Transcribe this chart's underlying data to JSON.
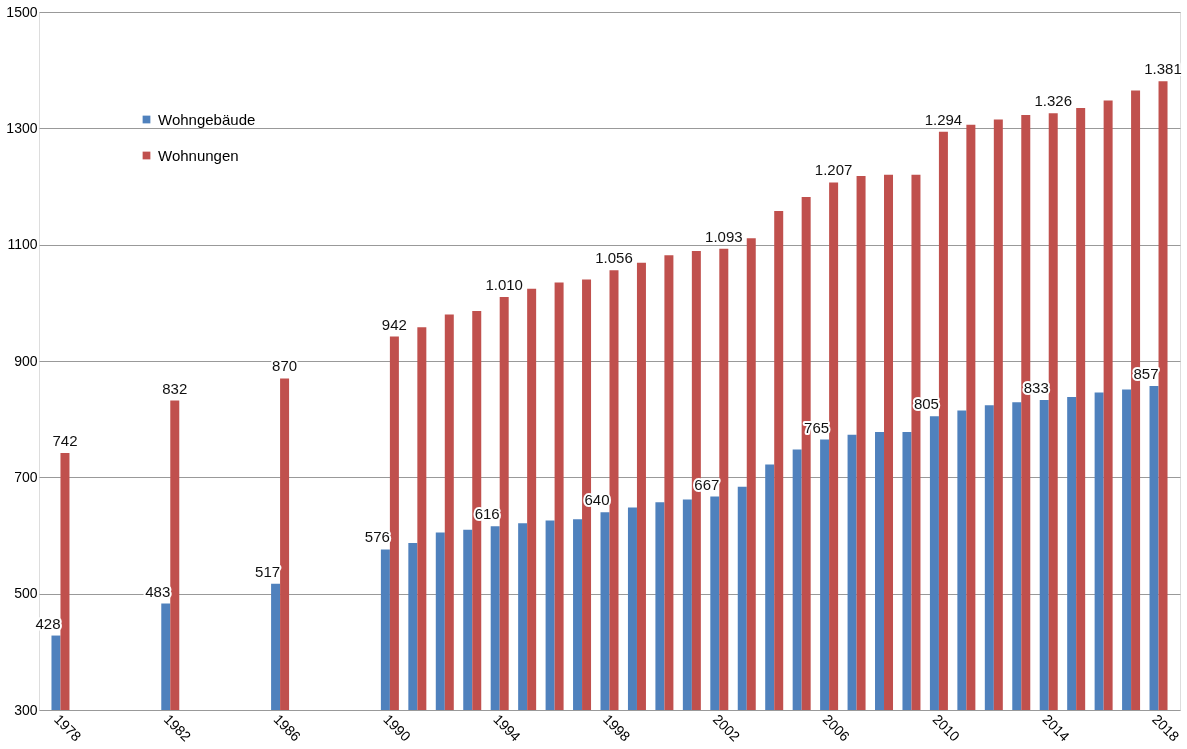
{
  "chart_data": {
    "type": "bar",
    "x": [
      1978,
      1982,
      1986,
      1990,
      1991,
      1992,
      1993,
      1994,
      1995,
      1996,
      1997,
      1998,
      1999,
      2000,
      2001,
      2002,
      2003,
      2004,
      2005,
      2006,
      2007,
      2008,
      2009,
      2010,
      2011,
      2012,
      2013,
      2014,
      2015,
      2016,
      2017,
      2018
    ],
    "series": [
      {
        "name": "Wohngebäude",
        "color": "#4f81bd",
        "values": [
          428,
          483,
          517,
          576,
          587,
          605,
          610,
          616,
          621,
          626,
          628,
          640,
          648,
          657,
          662,
          667,
          684,
          722,
          748,
          765,
          773,
          778,
          778,
          805,
          815,
          824,
          829,
          833,
          838,
          846,
          851,
          857
        ],
        "value_labels": [
          "428",
          "483",
          "517",
          "576",
          null,
          null,
          null,
          "616",
          null,
          null,
          null,
          "640",
          null,
          null,
          null,
          "667",
          null,
          null,
          null,
          "765",
          null,
          null,
          null,
          "805",
          null,
          null,
          null,
          "833",
          null,
          null,
          null,
          "857"
        ]
      },
      {
        "name": "Wohnungen",
        "color": "#c0504d",
        "values": [
          742,
          832,
          870,
          942,
          958,
          980,
          986,
          1010,
          1024,
          1035,
          1040,
          1056,
          1069,
          1082,
          1089,
          1093,
          1111,
          1158,
          1182,
          1207,
          1218,
          1220,
          1220,
          1294,
          1306,
          1315,
          1323,
          1326,
          1335,
          1348,
          1365,
          1381
        ],
        "value_labels": [
          "742",
          "832",
          "870",
          "942",
          null,
          null,
          null,
          "1.010",
          null,
          null,
          null,
          "1.056",
          null,
          null,
          null,
          "1.093",
          null,
          null,
          null,
          "1.207",
          null,
          null,
          null,
          "1.294",
          null,
          null,
          null,
          "1.326",
          null,
          null,
          null,
          "1.381"
        ]
      }
    ],
    "xlim": [
      1977.4,
      2018.6
    ],
    "xticks": [
      1978,
      1982,
      1986,
      1990,
      1994,
      1998,
      2002,
      2006,
      2010,
      2014,
      2018
    ],
    "ylim": [
      300,
      1500
    ],
    "yticks": [
      300,
      500,
      700,
      900,
      1100,
      1300,
      1500
    ],
    "grid": "y",
    "legend": "top left"
  }
}
